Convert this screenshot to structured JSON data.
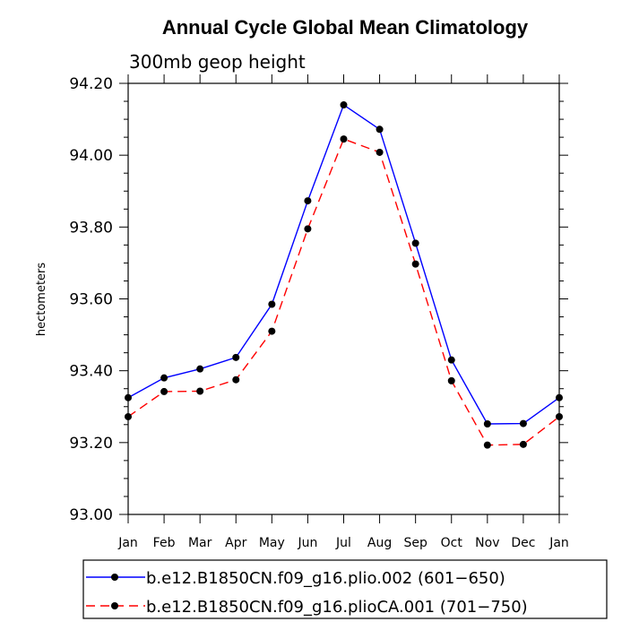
{
  "chart_data": {
    "type": "line",
    "title": "Annual Cycle Global Mean Climatology",
    "subtitle": "300mb geop height",
    "ylabel": "hectometers",
    "xlabel": "",
    "categories": [
      "Jan",
      "Feb",
      "Mar",
      "Apr",
      "May",
      "Jun",
      "Jul",
      "Aug",
      "Sep",
      "Oct",
      "Nov",
      "Dec",
      "Jan"
    ],
    "ylim": [
      93.0,
      94.2
    ],
    "yticks": [
      "93.00",
      "93.20",
      "93.40",
      "93.60",
      "93.80",
      "94.00",
      "94.20"
    ],
    "series": [
      {
        "name": "b.e12.B1850CN.f09_g16.plio.002 (601−650)",
        "color": "#0000ff",
        "dash": "solid",
        "values": [
          93.325,
          93.38,
          93.405,
          93.437,
          93.585,
          93.873,
          94.14,
          94.072,
          93.755,
          93.43,
          93.252,
          93.253,
          93.325
        ]
      },
      {
        "name": "b.e12.B1850CN.f09_g16.plioCA.001 (701−750)",
        "color": "#ff0000",
        "dash": "dashed",
        "values": [
          93.272,
          93.342,
          93.343,
          93.375,
          93.51,
          93.795,
          94.045,
          94.008,
          93.697,
          93.372,
          93.193,
          93.195,
          93.272
        ]
      }
    ],
    "marker": "filled-circle",
    "legend_position": "bottom",
    "grid": false
  }
}
